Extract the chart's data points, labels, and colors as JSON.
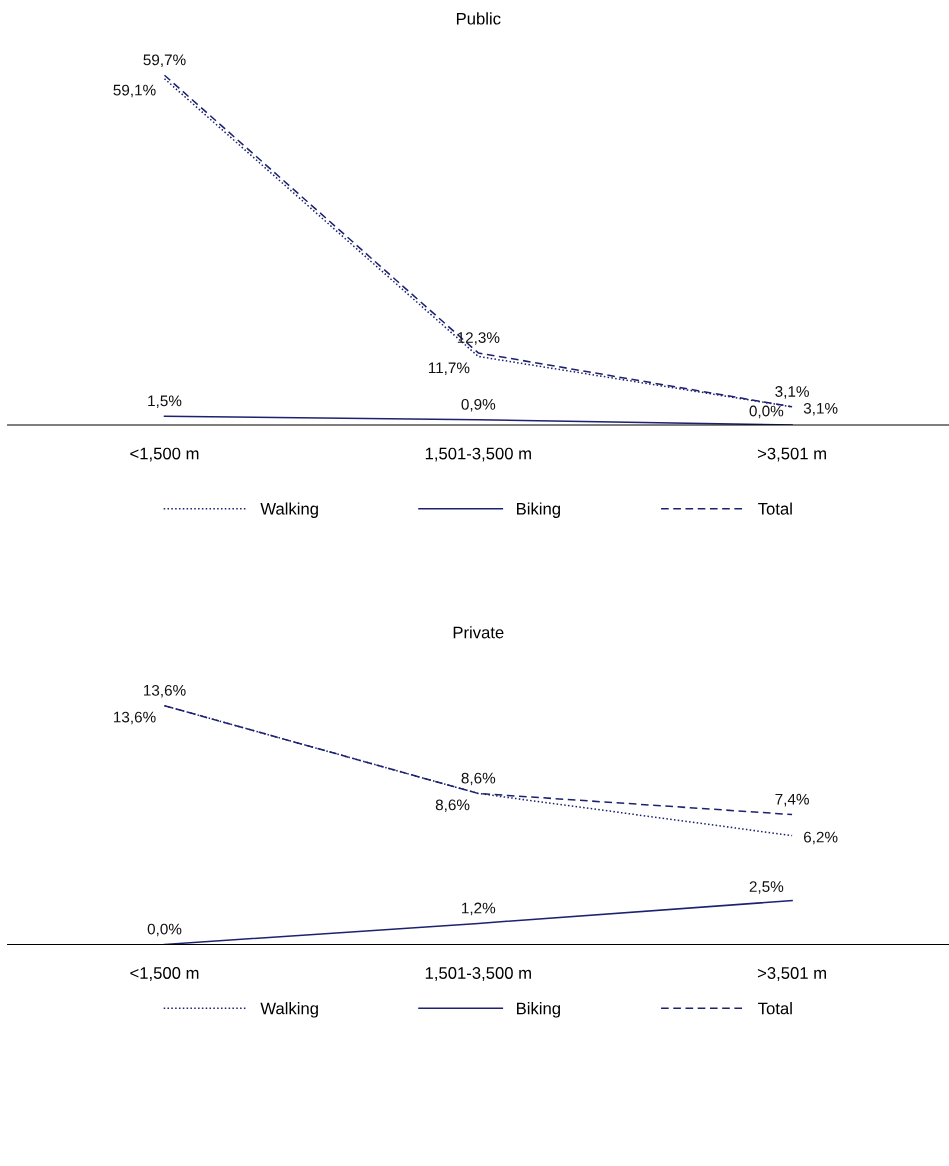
{
  "chart_data": [
    {
      "type": "line",
      "title": "Public",
      "categories": [
        "<1,500 m",
        "1,501-3,500 m",
        ">3,501 m"
      ],
      "tick_labels": "x",
      "legend": "bottom",
      "grid": false,
      "series": [
        {
          "name": "Walking",
          "color": "#1c2270",
          "line_style": "dotted",
          "values": [
            59.1,
            11.7,
            3.1
          ],
          "value_labels": [
            "59,1%",
            "11,7%",
            "3,1%"
          ]
        },
        {
          "name": "Biking",
          "color": "#1c2270",
          "line_style": "solid",
          "values": [
            1.5,
            0.9,
            0.0
          ],
          "value_labels": [
            "1,5%",
            "0,9%",
            "0,0%"
          ]
        },
        {
          "name": "Total",
          "color": "#1c2270",
          "line_style": "dashed",
          "values": [
            59.7,
            12.3,
            3.1
          ],
          "value_labels": [
            "59,7%",
            "12,3%",
            "3,1%"
          ]
        }
      ]
    },
    {
      "type": "line",
      "title": "Private",
      "categories": [
        "<1,500 m",
        "1,501-3,500 m",
        ">3,501 m"
      ],
      "tick_labels": "x",
      "legend": "bottom",
      "grid": false,
      "series": [
        {
          "name": "Walking",
          "color": "#1c2270",
          "line_style": "dotted",
          "values": [
            13.6,
            8.6,
            6.2
          ],
          "value_labels": [
            "13,6%",
            "8,6%",
            "6,2%"
          ]
        },
        {
          "name": "Biking",
          "color": "#1c2270",
          "line_style": "solid",
          "values": [
            0.0,
            1.2,
            2.5
          ],
          "value_labels": [
            "0,0%",
            "1,2%",
            "2,5%"
          ]
        },
        {
          "name": "Total",
          "color": "#1c2270",
          "line_style": "dashed",
          "values": [
            13.6,
            8.6,
            7.4
          ],
          "value_labels": [
            "13,6%",
            "8,6%",
            "7,4%"
          ]
        }
      ]
    }
  ]
}
